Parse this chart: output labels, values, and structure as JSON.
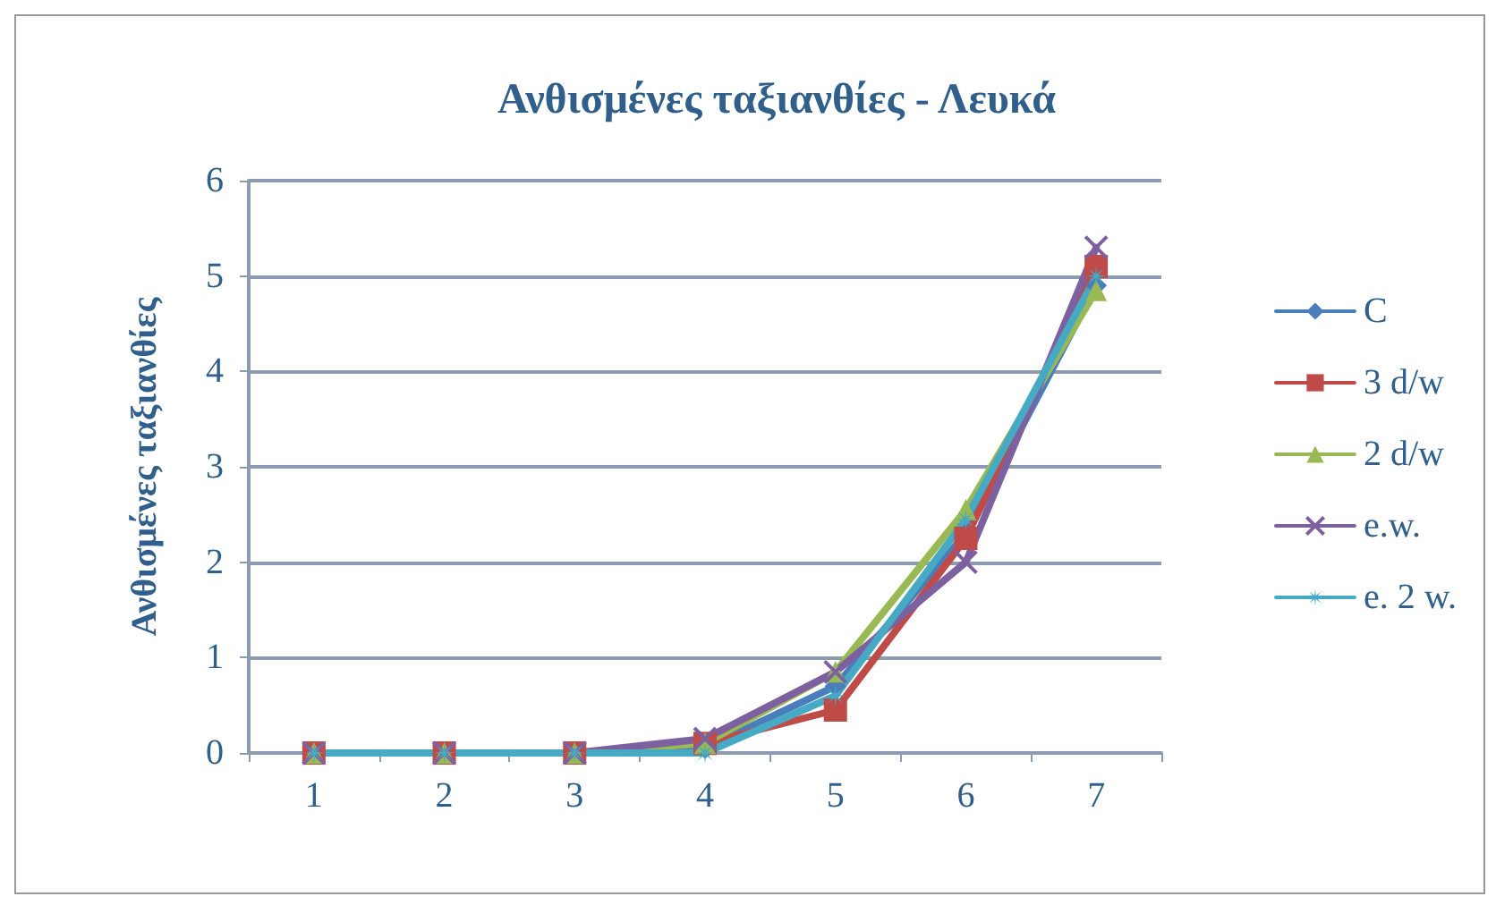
{
  "chart_data": {
    "type": "line",
    "title": "Ανθισμένες ταξιανθίες - Λευκά",
    "ylabel": "Ανθισμένες ταξιανθίες",
    "categories": [
      "1",
      "2",
      "3",
      "4",
      "5",
      "6",
      "7"
    ],
    "series": [
      {
        "name": "C",
        "color": "#4a7ebb",
        "marker": "diamond",
        "values": [
          0,
          0,
          0,
          0.05,
          0.7,
          2.3,
          4.9
        ]
      },
      {
        "name": "3 d/w",
        "color": "#be4b48",
        "marker": "square",
        "values": [
          0,
          0,
          0,
          0.1,
          0.45,
          2.25,
          5.1
        ]
      },
      {
        "name": "2 d/w",
        "color": "#98b954",
        "marker": "triangle",
        "values": [
          0,
          0,
          0,
          0.1,
          0.85,
          2.55,
          4.85
        ]
      },
      {
        "name": "e.w.",
        "color": "#7d60a0",
        "marker": "cross",
        "values": [
          0,
          0,
          0,
          0.15,
          0.85,
          2.0,
          5.3
        ]
      },
      {
        "name": "e. 2 w.",
        "color": "#46aac5",
        "marker": "star",
        "values": [
          0,
          0,
          0,
          0,
          0.6,
          2.45,
          5.0
        ]
      }
    ],
    "ylim": [
      0,
      6
    ],
    "yticks": [
      0,
      1,
      2,
      3,
      4,
      5,
      6
    ],
    "grid": "y",
    "legend": "right"
  }
}
